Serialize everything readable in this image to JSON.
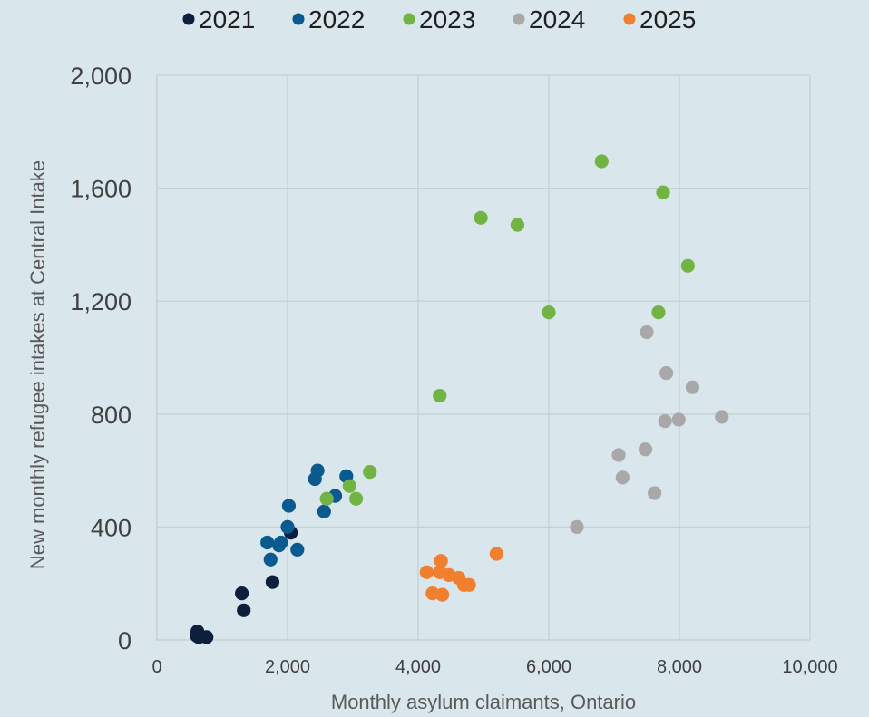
{
  "chart_data": {
    "type": "scatter",
    "xlabel": "Monthly asylum claimants, Ontario",
    "ylabel": "New monthly refugee intakes at Central Intake",
    "xlim": [
      0,
      10000
    ],
    "ylim": [
      0,
      2000
    ],
    "x_ticks": [
      0,
      2000,
      4000,
      6000,
      8000,
      10000
    ],
    "y_ticks": [
      0,
      400,
      800,
      1200,
      1600,
      2000
    ],
    "x_tick_labels": [
      "0",
      "2,000",
      "4,000",
      "6,000",
      "8,000",
      "10,000"
    ],
    "y_tick_labels": [
      "0",
      "400",
      "800",
      "1,200",
      "1,600",
      "2,000"
    ],
    "grid": true,
    "legend_position": "top",
    "series": [
      {
        "name": "2021",
        "color": "#0d1f3c",
        "points": [
          [
            620,
            30
          ],
          [
            610,
            15
          ],
          [
            640,
            10
          ],
          [
            760,
            10
          ],
          [
            1300,
            165
          ],
          [
            1330,
            105
          ],
          [
            1770,
            205
          ],
          [
            2050,
            380
          ]
        ]
      },
      {
        "name": "2022",
        "color": "#0a5a8f",
        "points": [
          [
            1690,
            345
          ],
          [
            1740,
            285
          ],
          [
            1870,
            335
          ],
          [
            1900,
            345
          ],
          [
            2000,
            400
          ],
          [
            2020,
            475
          ],
          [
            2150,
            320
          ],
          [
            2420,
            570
          ],
          [
            2460,
            600
          ],
          [
            2560,
            455
          ],
          [
            2730,
            510
          ],
          [
            2900,
            580
          ]
        ]
      },
      {
        "name": "2023",
        "color": "#72b444",
        "points": [
          [
            2600,
            500
          ],
          [
            2950,
            545
          ],
          [
            3050,
            500
          ],
          [
            3260,
            595
          ],
          [
            4330,
            865
          ],
          [
            4960,
            1495
          ],
          [
            5520,
            1470
          ],
          [
            6000,
            1160
          ],
          [
            6810,
            1695
          ],
          [
            7680,
            1160
          ],
          [
            7750,
            1585
          ],
          [
            8130,
            1325
          ]
        ]
      },
      {
        "name": "2024",
        "color": "#a8a8a8",
        "points": [
          [
            6430,
            400
          ],
          [
            7070,
            655
          ],
          [
            7130,
            575
          ],
          [
            7480,
            675
          ],
          [
            7500,
            1090
          ],
          [
            7620,
            520
          ],
          [
            7780,
            775
          ],
          [
            7800,
            945
          ],
          [
            7990,
            780
          ],
          [
            8200,
            895
          ],
          [
            8650,
            790
          ]
        ]
      },
      {
        "name": "2025",
        "color": "#f07f2f",
        "points": [
          [
            4130,
            240
          ],
          [
            4220,
            165
          ],
          [
            4330,
            240
          ],
          [
            4350,
            280
          ],
          [
            4370,
            160
          ],
          [
            4470,
            230
          ],
          [
            4620,
            220
          ],
          [
            4700,
            195
          ],
          [
            4780,
            195
          ],
          [
            5200,
            305
          ]
        ]
      }
    ]
  }
}
